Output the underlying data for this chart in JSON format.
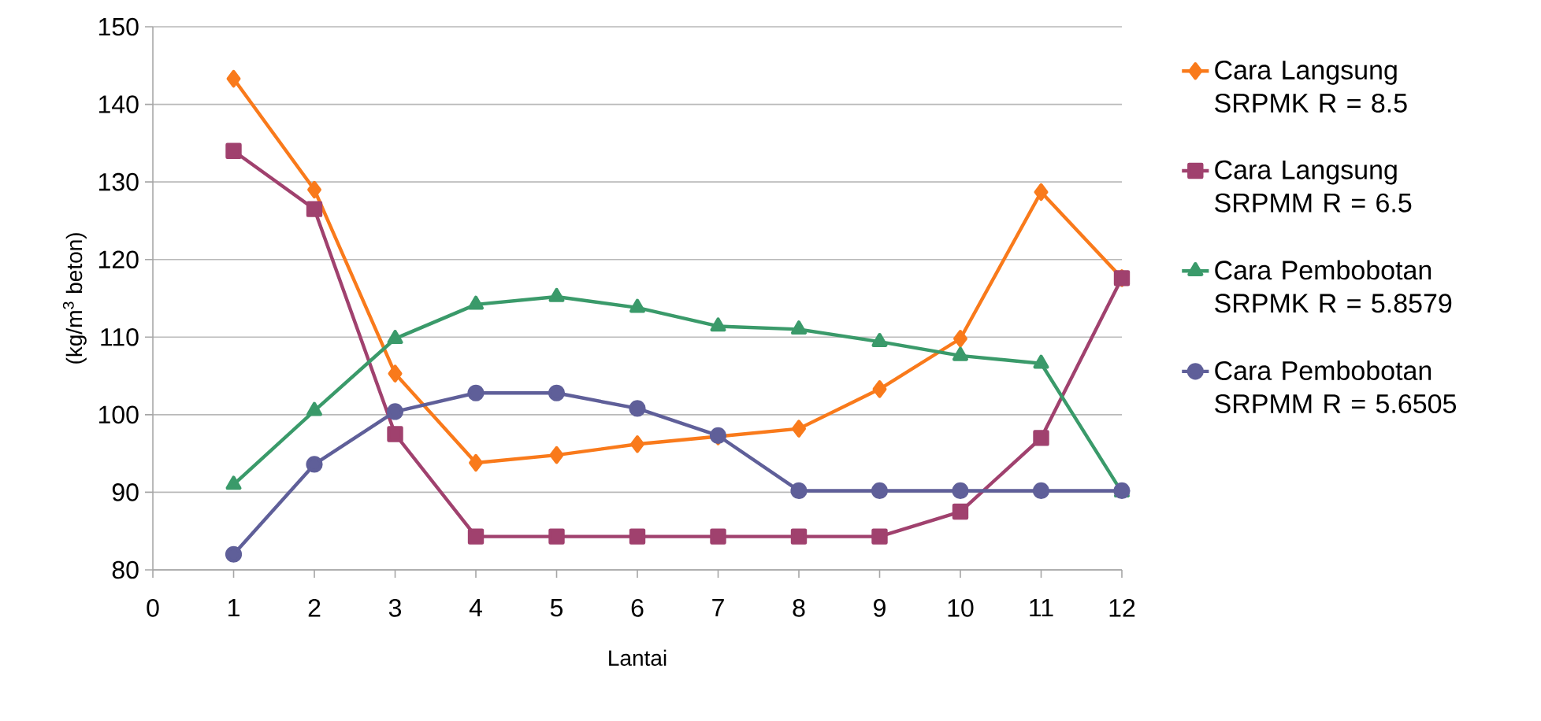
{
  "chart_data": {
    "type": "line",
    "xlabel": "Lantai",
    "ylabel": "(kg/m$^{3}$ beton)",
    "x": [
      1,
      2,
      3,
      4,
      5,
      6,
      7,
      8,
      9,
      10,
      11,
      12
    ],
    "xlim": [
      0,
      12
    ],
    "xticks": [
      0,
      1,
      2,
      3,
      4,
      5,
      6,
      7,
      8,
      9,
      10,
      11,
      12
    ],
    "ylim": [
      80,
      150
    ],
    "yticks": [
      80,
      90,
      100,
      110,
      120,
      130,
      140,
      150
    ],
    "grid": "y",
    "legend": "right",
    "series": [
      {
        "name": "Cara Langsung SRPMK R = 8.5",
        "color": "#f97a1b",
        "marker": "diamond",
        "values": [
          143.3,
          129,
          105.3,
          93.8,
          94.8,
          96.2,
          97.2,
          98.2,
          103.3,
          109.8,
          128.7,
          117.6
        ]
      },
      {
        "name": "Cara Langsung SRPMM R = 6.5",
        "color": "#a0416e",
        "marker": "square",
        "values": [
          134,
          126.5,
          97.5,
          84.3,
          84.3,
          84.3,
          84.3,
          84.3,
          84.3,
          87.5,
          97,
          117.6
        ]
      },
      {
        "name": "Cara Pembobotan SRPMK R = 5.8579",
        "color": "#3a9a6a",
        "marker": "triangle",
        "values": [
          91,
          100.5,
          109.8,
          114.2,
          115.2,
          113.8,
          111.4,
          111,
          109.4,
          107.6,
          106.6,
          90
        ]
      },
      {
        "name": "Cara Pembobotan SRPMM R = 5.6505",
        "color": "#5f5f99",
        "marker": "circle",
        "values": [
          82,
          93.6,
          100.4,
          102.8,
          102.8,
          100.8,
          97.3,
          90.2,
          90.2,
          90.2,
          90.2,
          90.2
        ]
      }
    ]
  }
}
